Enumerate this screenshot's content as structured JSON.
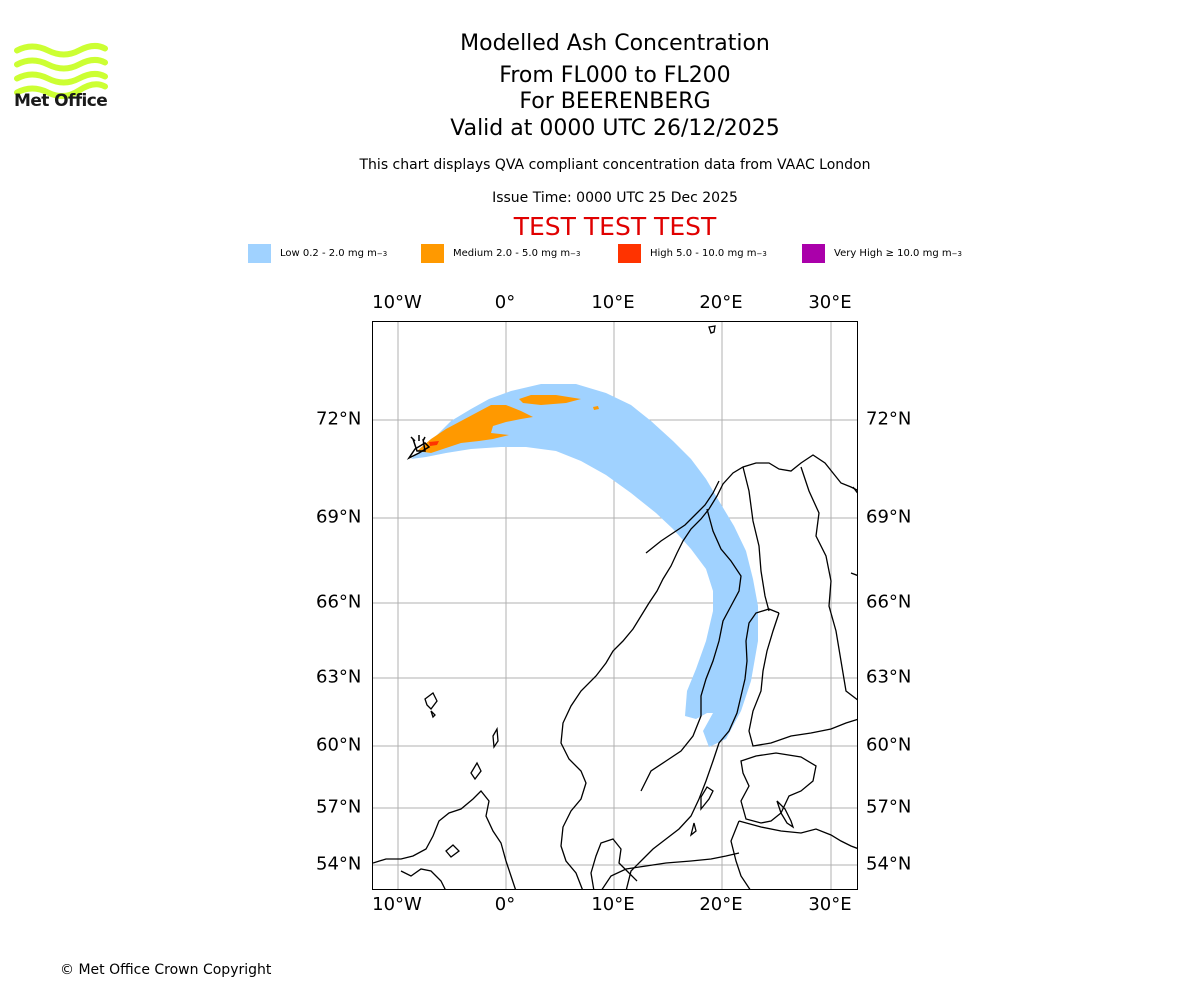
{
  "logo": {
    "text": "Met Office",
    "icon": "met-office-wave-logo",
    "color": "#ccff33"
  },
  "header": {
    "title": "Modelled Ash Concentration",
    "levels": "From FL000 to FL200",
    "volcano": "For BEERENBERG",
    "valid": "Valid at 0000 UTC 26/12/2025",
    "description": "This chart displays QVA compliant concentration data from VAAC London",
    "issue_time": "Issue Time: 0000 UTC 25 Dec 2025",
    "test_banner": "TEST TEST TEST"
  },
  "legend": [
    {
      "label": "Low 0.2 - 2.0 mg m",
      "exp": "−3",
      "color": "#a0d2ff"
    },
    {
      "label": "Medium 2.0 - 5.0 mg m",
      "exp": "−3",
      "color": "#ff9900"
    },
    {
      "label": "High 5.0 - 10.0 mg m",
      "exp": "−3",
      "color": "#ff3300"
    },
    {
      "label": "Very High ≥ 10.0 mg m",
      "exp": "−3",
      "color": "#aa00aa"
    }
  ],
  "map": {
    "lon_labels": [
      "10°W",
      "0°",
      "10°E",
      "20°E",
      "30°E"
    ],
    "lat_labels": [
      "72°N",
      "69°N",
      "66°N",
      "63°N",
      "60°N",
      "57°N",
      "54°N"
    ],
    "volcano_marker": "volcano-symbol",
    "gridlines": true
  },
  "footer": {
    "copyright": "© Met Office Crown Copyright"
  }
}
